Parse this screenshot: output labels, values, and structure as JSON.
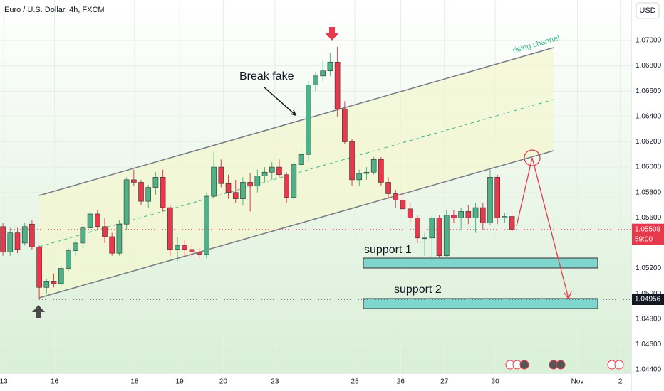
{
  "chart_data": {
    "type": "candlestick",
    "title": "Euro / U.S. Dollar, 4h, FXCM",
    "currency": "USD",
    "annotations": {
      "channel": "rising channel",
      "fake": "Break fake",
      "support1": "support 1",
      "support2": "support 2"
    },
    "up_color": "#4fb286",
    "down_color": "#e8394c",
    "x": [
      0,
      1,
      2,
      3,
      4,
      5,
      6,
      7,
      8,
      9,
      10,
      11,
      12,
      13,
      14,
      15,
      16,
      17,
      18,
      19,
      20,
      21,
      22,
      23,
      24,
      25,
      26,
      27,
      28,
      29,
      30,
      31,
      32,
      33,
      34,
      35,
      36,
      37,
      38,
      39,
      40,
      41,
      42,
      43,
      44,
      45,
      46,
      47,
      48,
      49,
      50,
      51,
      52,
      53,
      54,
      55,
      56,
      57,
      58,
      59,
      60,
      61,
      62,
      63,
      64,
      65,
      66,
      67,
      68,
      69,
      70
    ],
    "open": [
      1.0553,
      1.0533,
      1.0548,
      1.054,
      1.0555,
      1.0537,
      1.0505,
      1.051,
      1.0508,
      1.052,
      1.0534,
      1.054,
      1.0552,
      1.0563,
      1.0553,
      1.0545,
      1.0532,
      1.0555,
      1.059,
      1.0588,
      1.0573,
      1.0584,
      1.0592,
      1.0568,
      1.0535,
      1.0538,
      1.0535,
      1.0533,
      1.0531,
      1.0577,
      1.06,
      1.0587,
      1.058,
      1.0575,
      1.0588,
      1.0585,
      1.0593,
      1.0596,
      1.06,
      1.0594,
      1.0576,
      1.0602,
      1.061,
      1.0665,
      1.0672,
      1.0676,
      1.0683,
      1.0646,
      1.062,
      1.059,
      1.0595,
      1.0596,
      1.0606,
      1.0588,
      1.0579,
      1.0574,
      1.0567,
      1.056,
      1.0544,
      1.0544,
      1.056,
      1.053,
      1.0562,
      1.056,
      1.0565,
      1.056,
      1.0568,
      1.0556,
      1.0592,
      1.056,
      1.0561
    ],
    "high": [
      1.0556,
      1.0552,
      1.0552,
      1.0556,
      1.0558,
      1.0538,
      1.0512,
      1.0516,
      1.0522,
      1.0536,
      1.0542,
      1.0555,
      1.0565,
      1.0566,
      1.056,
      1.0548,
      1.0558,
      1.0592,
      1.0598,
      1.059,
      1.0586,
      1.0596,
      1.0598,
      1.057,
      1.0545,
      1.0542,
      1.054,
      1.0536,
      1.058,
      1.0612,
      1.0606,
      1.0594,
      1.059,
      1.0592,
      1.0595,
      1.0598,
      1.06,
      1.0604,
      1.0606,
      1.0596,
      1.0605,
      1.0616,
      1.0668,
      1.0675,
      1.0684,
      1.069,
      1.0695,
      1.0652,
      1.0622,
      1.0598,
      1.06,
      1.0608,
      1.0608,
      1.0592,
      1.0582,
      1.058,
      1.0572,
      1.0562,
      1.0548,
      1.0562,
      1.0562,
      1.0566,
      1.0566,
      1.0568,
      1.057,
      1.0572,
      1.0572,
      1.0598,
      1.0594,
      1.0564,
      1.0563
    ],
    "low": [
      1.053,
      1.053,
      1.0532,
      1.0538,
      1.0535,
      1.04956,
      1.05,
      1.0505,
      1.0506,
      1.0518,
      1.053,
      1.0536,
      1.0548,
      1.055,
      1.054,
      1.053,
      1.053,
      1.055,
      1.0585,
      1.057,
      1.0568,
      1.0578,
      1.0565,
      1.053,
      1.0526,
      1.053,
      1.0528,
      1.0528,
      1.0528,
      1.0575,
      1.0584,
      1.0575,
      1.0572,
      1.057,
      1.0565,
      1.058,
      1.0588,
      1.059,
      1.0592,
      1.0572,
      1.0574,
      1.0595,
      1.0605,
      1.066,
      1.0668,
      1.0672,
      1.064,
      1.0618,
      1.0585,
      1.0585,
      1.059,
      1.0594,
      1.0585,
      1.0575,
      1.0568,
      1.0565,
      1.0556,
      1.054,
      1.053,
      1.0525,
      1.0528,
      1.0528,
      1.0556,
      1.055,
      1.0555,
      1.0548,
      1.055,
      1.0554,
      1.0555,
      1.0556,
      1.0548
    ],
    "close": [
      1.0533,
      1.0548,
      1.0535,
      1.0553,
      1.0537,
      1.0505,
      1.051,
      1.0508,
      1.052,
      1.0534,
      1.054,
      1.0552,
      1.0563,
      1.0553,
      1.0545,
      1.0532,
      1.0555,
      1.059,
      1.0588,
      1.0573,
      1.0584,
      1.0592,
      1.0568,
      1.0535,
      1.0538,
      1.0535,
      1.0533,
      1.0531,
      1.0577,
      1.06,
      1.0587,
      1.058,
      1.0575,
      1.0588,
      1.0585,
      1.0593,
      1.0596,
      1.06,
      1.0594,
      1.0576,
      1.0602,
      1.061,
      1.0665,
      1.0672,
      1.0676,
      1.0683,
      1.0646,
      1.062,
      1.059,
      1.0595,
      1.0596,
      1.0606,
      1.0588,
      1.0579,
      1.0574,
      1.0567,
      1.056,
      1.0544,
      1.0544,
      1.056,
      1.053,
      1.0562,
      1.056,
      1.0565,
      1.056,
      1.0568,
      1.0556,
      1.0592,
      1.056,
      1.0561,
      1.05508
    ],
    "xlim": [
      -0.4,
      86.4
    ],
    "xticks": [
      {
        "value": 0.1,
        "label": "13"
      },
      {
        "value": 7.1,
        "label": "16"
      },
      {
        "value": 18.1,
        "label": "18"
      },
      {
        "value": 24.3,
        "label": "19"
      },
      {
        "value": 30.3,
        "label": "20"
      },
      {
        "value": 37.4,
        "label": "23"
      },
      {
        "value": 48.4,
        "label": "25"
      },
      {
        "value": 54.7,
        "label": "26"
      },
      {
        "value": 60.7,
        "label": "27"
      },
      {
        "value": 67.7,
        "label": "30"
      },
      {
        "value": 79.0,
        "label": "Nov"
      },
      {
        "value": 84.9,
        "label": "2"
      }
    ],
    "ylim": [
      1.04372,
      1.0732
    ],
    "yticks": [
      {
        "value": 1.07,
        "label": "1.07000"
      },
      {
        "value": 1.068,
        "label": "1.06800"
      },
      {
        "value": 1.066,
        "label": "1.06600"
      },
      {
        "value": 1.064,
        "label": "1.06400"
      },
      {
        "value": 1.062,
        "label": "1.06200"
      },
      {
        "value": 1.06,
        "label": "1.06000"
      },
      {
        "value": 1.058,
        "label": "1.05800"
      },
      {
        "value": 1.056,
        "label": "1.05600"
      },
      {
        "value": 1.054,
        "label": "1.05400"
      },
      {
        "value": 1.052,
        "label": "1.05200"
      },
      {
        "value": 1.05,
        "label": "1.05000"
      },
      {
        "value": 1.048,
        "label": "1.04800"
      },
      {
        "value": 1.046,
        "label": "1.04600"
      },
      {
        "value": 1.044,
        "label": "1.04400"
      }
    ],
    "price_labels": [
      {
        "value": 1.05508,
        "label": "1.05508",
        "color": "#e8394c"
      },
      {
        "value": 1.04956,
        "label": "1.04956",
        "color": "#131722"
      }
    ],
    "countdown": "59:00"
  }
}
